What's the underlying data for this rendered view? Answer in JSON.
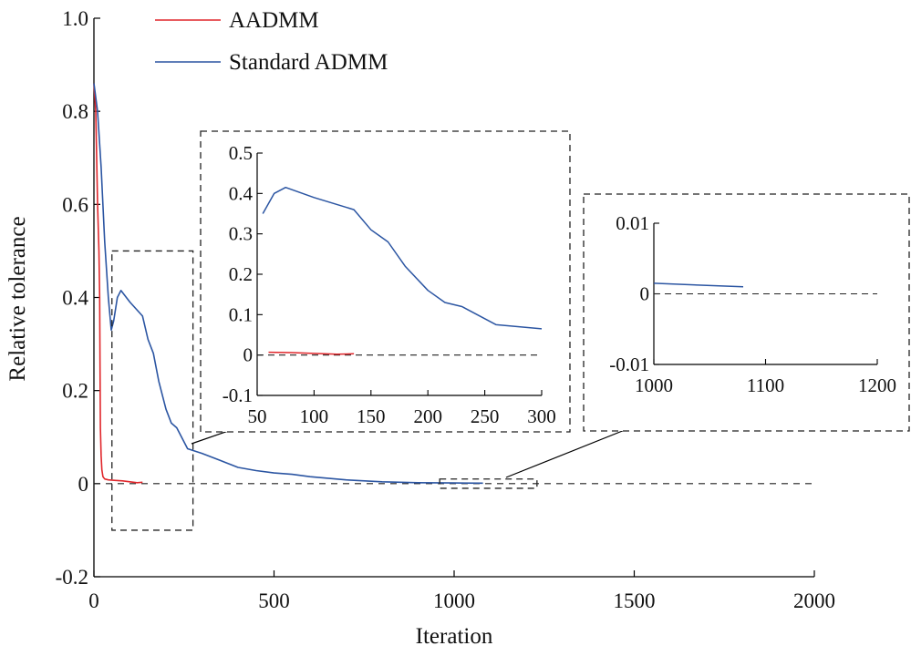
{
  "chart_data": {
    "type": "line",
    "xlabel": "Iteration",
    "ylabel": "Relative tolerance",
    "xlim": [
      0,
      2000
    ],
    "ylim": [
      -0.2,
      1.0
    ],
    "xticks": [
      0,
      500,
      1000,
      1500,
      2000
    ],
    "xtick_labels": [
      "0",
      "500",
      "1000",
      "1500",
      "2000"
    ],
    "yticks": [
      -0.2,
      0,
      0.2,
      0.4,
      0.6,
      0.8,
      1.0
    ],
    "ytick_labels": [
      "-0.2",
      "0",
      "0.2",
      "0.4",
      "0.6",
      "0.8",
      "1.0"
    ],
    "legend_position": "top-left",
    "reference_line": {
      "y": 0,
      "style": "dashed",
      "x_range": [
        0,
        2000
      ]
    },
    "series": [
      {
        "name": "AADMM",
        "color": "#e0262b",
        "x": [
          0,
          5,
          10,
          14,
          16,
          17,
          18,
          20,
          22,
          25,
          30,
          40,
          60,
          80,
          100,
          120,
          135
        ],
        "y": [
          0.86,
          0.8,
          0.6,
          0.5,
          0.4,
          0.25,
          0.12,
          0.06,
          0.03,
          0.015,
          0.01,
          0.008,
          0.007,
          0.006,
          0.004,
          0.002,
          0.003
        ]
      },
      {
        "name": "Standard ADMM",
        "color": "#2b55a2",
        "x": [
          0,
          10,
          20,
          30,
          40,
          48,
          55,
          65,
          75,
          100,
          135,
          150,
          165,
          180,
          200,
          215,
          230,
          260,
          300,
          350,
          400,
          450,
          500,
          550,
          600,
          700,
          800,
          900,
          1000,
          1080
        ],
        "y": [
          0.86,
          0.8,
          0.68,
          0.52,
          0.4,
          0.33,
          0.35,
          0.4,
          0.415,
          0.39,
          0.36,
          0.31,
          0.28,
          0.22,
          0.16,
          0.13,
          0.12,
          0.075,
          0.065,
          0.05,
          0.035,
          0.028,
          0.023,
          0.02,
          0.015,
          0.008,
          0.004,
          0.002,
          0.0015,
          0.001
        ]
      }
    ],
    "zoom_boxes": [
      {
        "name": "zoom-region-1",
        "x_range": [
          50,
          275
        ],
        "y_range": [
          -0.1,
          0.5
        ]
      },
      {
        "name": "zoom-region-2",
        "x_range": [
          960,
          1230
        ],
        "y_range": [
          -0.01,
          0.01
        ]
      }
    ],
    "insets": [
      {
        "name": "inset-1",
        "xlim": [
          50,
          300
        ],
        "ylim": [
          -0.1,
          0.5
        ],
        "xticks": [
          50,
          100,
          150,
          200,
          250,
          300
        ],
        "xtick_labels": [
          "50",
          "100",
          "150",
          "200",
          "250",
          "300"
        ],
        "yticks": [
          -0.1,
          0,
          0.1,
          0.2,
          0.3,
          0.4,
          0.5
        ],
        "ytick_labels": [
          "-0.1",
          "0",
          "0.1",
          "0.2",
          "0.3",
          "0.4",
          "0.5"
        ]
      },
      {
        "name": "inset-2",
        "xlim": [
          1000,
          1200
        ],
        "ylim": [
          -0.01,
          0.01
        ],
        "xticks": [
          1000,
          1100,
          1200
        ],
        "xtick_labels": [
          "1000",
          "1100",
          "1200"
        ],
        "yticks": [
          -0.01,
          0,
          0.01
        ],
        "ytick_labels": [
          "-0.01",
          "0",
          "0.01"
        ]
      }
    ]
  }
}
